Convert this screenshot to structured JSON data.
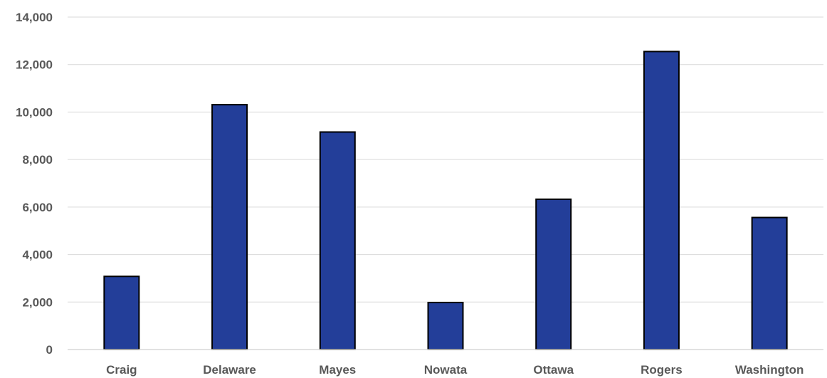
{
  "chart_data": {
    "type": "bar",
    "title": "",
    "xlabel": "",
    "ylabel": "",
    "categories": [
      "Craig",
      "Delaware",
      "Mayes",
      "Nowata",
      "Ottawa",
      "Rogers",
      "Washington"
    ],
    "values": [
      3080,
      10310,
      9160,
      1980,
      6330,
      12550,
      5560
    ],
    "ylim": [
      0,
      14000
    ],
    "yticks": [
      0,
      2000,
      4000,
      6000,
      8000,
      10000,
      12000,
      14000
    ],
    "ytick_labels": [
      "0",
      "2,000",
      "4,000",
      "6,000",
      "8,000",
      "10,000",
      "12,000",
      "14,000"
    ],
    "grid": true,
    "legend": "none",
    "bar_color": "#233e99"
  }
}
